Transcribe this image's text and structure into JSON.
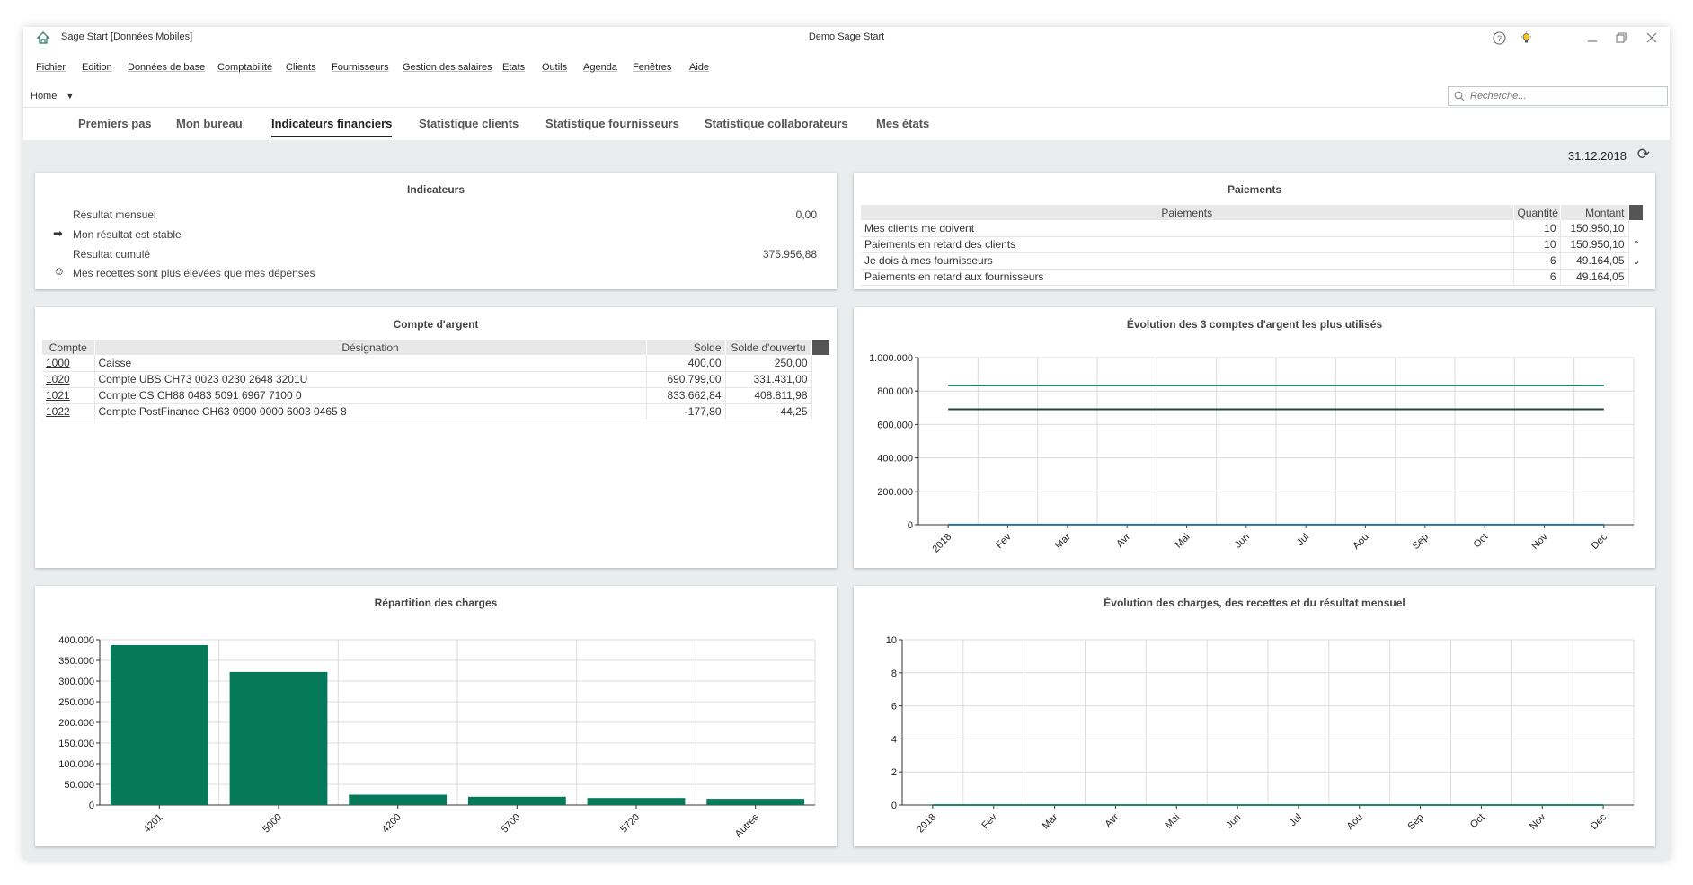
{
  "window": {
    "app_title": "Sage Start [Données Mobiles]",
    "center_title": "Demo Sage Start"
  },
  "icons": {
    "app": "sage-house-icon",
    "help": "help-icon",
    "tips": "lightbulb-icon",
    "minimize": "minimize-icon",
    "restore": "restore-icon",
    "close": "close-icon"
  },
  "menu": {
    "items": [
      {
        "label": "Fichier"
      },
      {
        "label": "Edition"
      },
      {
        "label": "Données de base"
      },
      {
        "label": "Comptabilité"
      },
      {
        "label": "Clients"
      },
      {
        "label": "Fournisseurs"
      },
      {
        "label": "Gestion des salaires"
      },
      {
        "label": "Etats"
      },
      {
        "label": "Outils"
      },
      {
        "label": "Agenda"
      },
      {
        "label": "Fenêtres"
      },
      {
        "label": "Aide"
      }
    ]
  },
  "toolbar": {
    "home_label": "Home",
    "search_placeholder": "Recherche..."
  },
  "tabs": [
    {
      "label": "Premiers pas"
    },
    {
      "label": "Mon bureau"
    },
    {
      "label": "Indicateurs financiers",
      "active": true
    },
    {
      "label": "Statistique clients"
    },
    {
      "label": "Statistique fournisseurs"
    },
    {
      "label": "Statistique collaborateurs"
    },
    {
      "label": "Mes états"
    }
  ],
  "date": "31.12.2018",
  "indicateurs": {
    "title": "Indicateurs",
    "rows": [
      {
        "label": "Résultat mensuel",
        "value": "0,00"
      },
      {
        "label": "Mon résultat est stable",
        "icon": "arrow-right-icon"
      },
      {
        "label": "Résultat cumulé",
        "value": "375.956,88"
      },
      {
        "label": "Mes recettes sont plus élevées que mes dépenses",
        "icon": "smiley-icon"
      }
    ]
  },
  "paiements": {
    "title": "Paiements",
    "headers": [
      "Paiements",
      "Quantité",
      "Montant"
    ],
    "rows": [
      {
        "label": "Mes clients me doivent",
        "qty": "10",
        "amount": "150.950,10"
      },
      {
        "label": "Paiements en retard des clients",
        "qty": "10",
        "amount": "150.950,10"
      },
      {
        "label": "Je dois à mes fournisseurs",
        "qty": "6",
        "amount": "49.164,05"
      },
      {
        "label": "Paiements en retard aux fournisseurs",
        "qty": "6",
        "amount": "49.164,05"
      }
    ]
  },
  "compte": {
    "title": "Compte d'argent",
    "headers": [
      "Compte",
      "Désignation",
      "Solde",
      "Solde d'ouvertu"
    ],
    "rows": [
      {
        "compte": "1000",
        "designation": "Caisse",
        "solde": "400,00",
        "ouverture": "250,00"
      },
      {
        "compte": "1020",
        "designation": "Compte UBS CH73 0023 0230 2648 3201U",
        "solde": "690.799,00",
        "ouverture": "331.431,00"
      },
      {
        "compte": "1021",
        "designation": "Compte CS CH88 0483 5091 6967 7100 0",
        "solde": "833.662,84",
        "ouverture": "408.811,98"
      },
      {
        "compte": "1022",
        "designation": "Compte PostFinance CH63 0900 0000 6003 0465 8",
        "solde": "-177,80",
        "ouverture": "44,25"
      }
    ]
  },
  "chart_data": [
    {
      "id": "evolution-comptes",
      "type": "line",
      "title": "Évolution des 3 comptes d'argent les plus utilisés",
      "categories": [
        "2018",
        "Fev",
        "Mar",
        "Avr",
        "Mai",
        "Jun",
        "Jul",
        "Aou",
        "Sep",
        "Oct",
        "Nov",
        "Dec"
      ],
      "yticks": [
        "0",
        "200.000",
        "400.000",
        "600.000",
        "800.000",
        "1.000.000"
      ],
      "ylim": [
        0,
        1000000
      ],
      "series": [
        {
          "color": "#1f8a62",
          "values": [
            833662,
            833662,
            833662,
            833662,
            833662,
            833662,
            833662,
            833662,
            833662,
            833662,
            833662,
            833662
          ]
        },
        {
          "color": "#1e4a3a",
          "values": [
            690799,
            690799,
            690799,
            690799,
            690799,
            690799,
            690799,
            690799,
            690799,
            690799,
            690799,
            690799
          ]
        },
        {
          "color": "#2a6fa0",
          "values": [
            400,
            400,
            400,
            400,
            400,
            400,
            400,
            400,
            400,
            400,
            400,
            400
          ]
        }
      ],
      "grid": true
    },
    {
      "id": "repartition-charges",
      "type": "bar",
      "title": "Répartition des charges",
      "categories": [
        "4201",
        "5000",
        "4200",
        "5700",
        "5720",
        "Autres"
      ],
      "values": [
        387000,
        322000,
        25000,
        20000,
        17000,
        15000
      ],
      "yticks": [
        "0",
        "50.000",
        "100.000",
        "150.000",
        "200.000",
        "250.000",
        "300.000",
        "350.000",
        "400.000"
      ],
      "ylim": [
        0,
        400000
      ],
      "color": "#047a5a",
      "grid": true
    },
    {
      "id": "evolution-charges",
      "type": "line",
      "title": "Évolution des charges, des recettes et du résultat mensuel",
      "categories": [
        "2018",
        "Fev",
        "Mar",
        "Avr",
        "Mai",
        "Jun",
        "Jul",
        "Aou",
        "Sep",
        "Oct",
        "Nov",
        "Dec"
      ],
      "yticks": [
        "0",
        "2",
        "4",
        "6",
        "8",
        "10"
      ],
      "ylim": [
        0,
        10
      ],
      "series": [
        {
          "color": "#1f8a62",
          "values": [
            0,
            0,
            0,
            0,
            0,
            0,
            0,
            0,
            0,
            0,
            0,
            0
          ]
        }
      ],
      "grid": true
    }
  ]
}
